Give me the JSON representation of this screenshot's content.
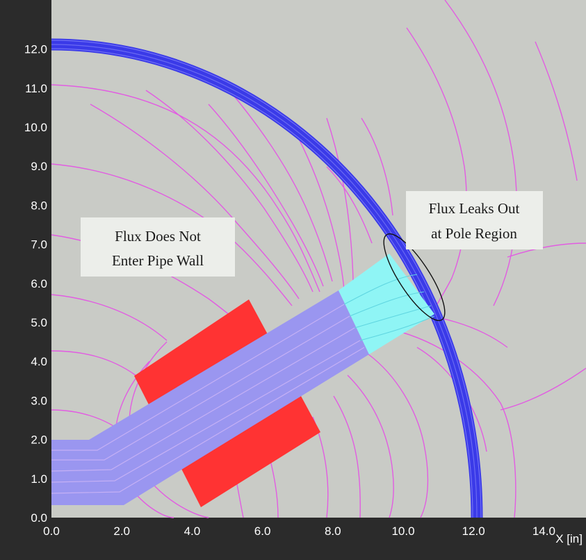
{
  "axes": {
    "x": {
      "label": "X [in]",
      "range": [
        0,
        15.5
      ],
      "ticks": [
        "0.0",
        "2.0",
        "4.0",
        "6.0",
        "8.0",
        "10.0",
        "12.0",
        "14.0"
      ]
    },
    "y": {
      "range": [
        0,
        12.8
      ],
      "ticks": [
        "0.0",
        "1.0",
        "2.0",
        "3.0",
        "4.0",
        "5.0",
        "6.0",
        "7.0",
        "8.0",
        "9.0",
        "10.0",
        "11.0",
        "12.0"
      ]
    }
  },
  "annotations": {
    "left": {
      "line1": "Flux Does Not",
      "line2": "Enter Pipe Wall"
    },
    "right": {
      "line1": "Flux Leaks Out",
      "line2": "at Pole Region"
    }
  },
  "colors": {
    "background": "#c9cbc6",
    "frame": "#2b2b2b",
    "pipe_wall": "#3a3ae8",
    "flux_lines": "#e25ce2",
    "magnet": "#ff3333",
    "yoke": "#9a96f0",
    "pole_piece": "#8ff5f5",
    "callout_box": "#eceeea"
  }
}
